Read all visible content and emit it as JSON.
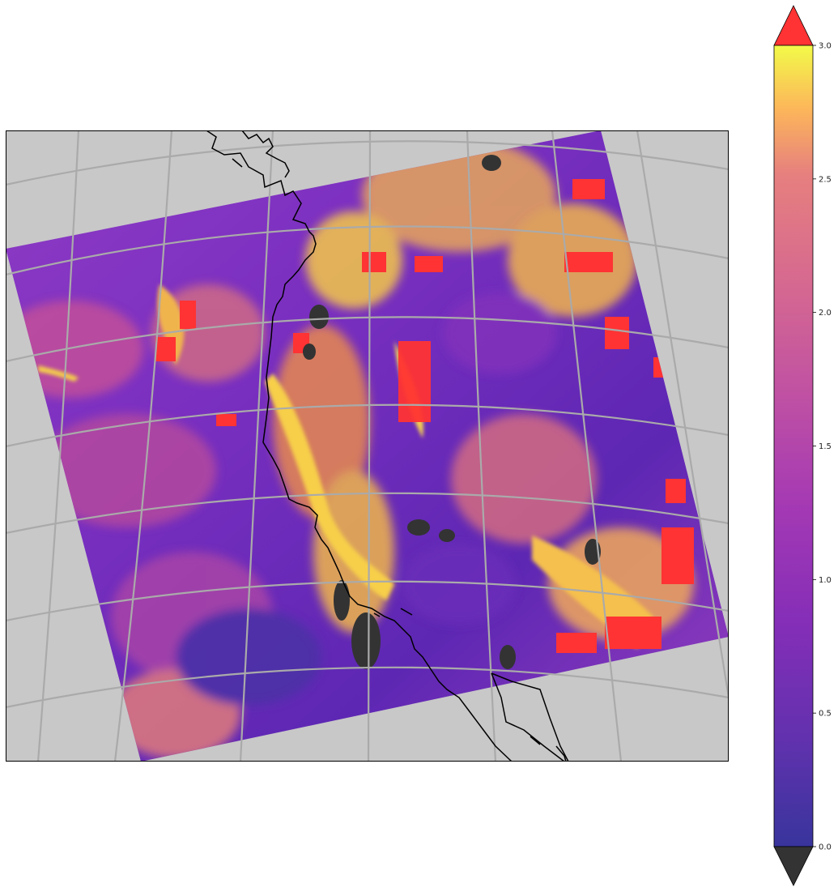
{
  "map": {
    "background_color": "#c8c8c8",
    "gridline_color": "#aaaaaa",
    "coastline_color": "#000000",
    "missing_color": "#333333",
    "over_color": "#ff3333"
  },
  "colorbar": {
    "vmin": 0.0,
    "vmax": 3.0,
    "extend": "both",
    "under_color": "#333333",
    "over_color": "#ff3333",
    "colormap": "plasma",
    "ticks": [
      {
        "value": 0.0,
        "label": "0.0"
      },
      {
        "value": 0.5,
        "label": "0.5"
      },
      {
        "value": 1.0,
        "label": "1.0"
      },
      {
        "value": 1.5,
        "label": "1.5"
      },
      {
        "value": 2.0,
        "label": "2.0"
      },
      {
        "value": 2.5,
        "label": "2.5"
      },
      {
        "value": 3.0,
        "label": "3.0"
      }
    ]
  }
}
